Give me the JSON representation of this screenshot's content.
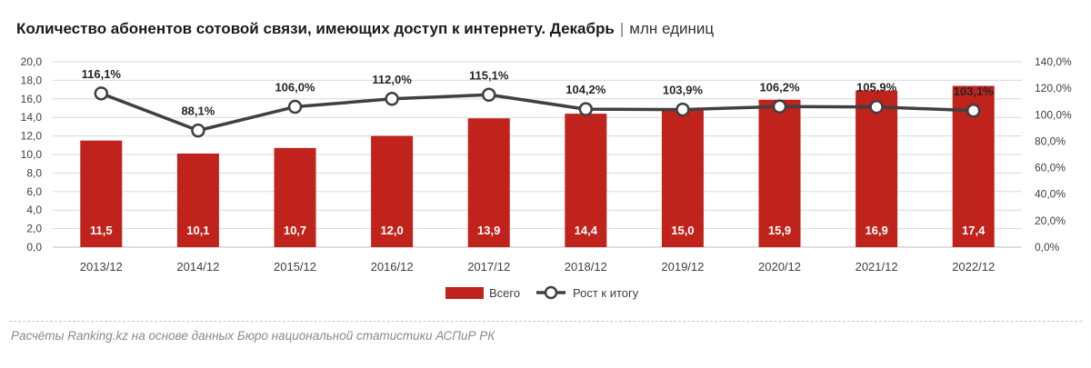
{
  "header": {
    "title": "Количество абонентов сотовой связи, имеющих доступ к интернету. Декабрь",
    "separator": "|",
    "unit": "млн единиц"
  },
  "footer": {
    "source": "Расчёты Ranking.kz на основе данных Бюро национальной статистики АСПиР РК"
  },
  "colors": {
    "bar": "#c0221c",
    "line": "#404040",
    "marker_fill": "#ffffff",
    "grid": "#d9d9d9"
  },
  "chart_data": {
    "type": "bar",
    "categories": [
      "2013/12",
      "2014/12",
      "2015/12",
      "2016/12",
      "2017/12",
      "2018/12",
      "2019/12",
      "2020/12",
      "2021/12",
      "2022/12"
    ],
    "series": [
      {
        "name": "Всего",
        "type": "bar",
        "axis": "left",
        "values": [
          11.5,
          10.1,
          10.7,
          12.0,
          13.9,
          14.4,
          15.0,
          15.9,
          16.9,
          17.4
        ],
        "labels": [
          "11,5",
          "10,1",
          "10,7",
          "12,0",
          "13,9",
          "14,4",
          "15,0",
          "15,9",
          "16,9",
          "17,4"
        ]
      },
      {
        "name": "Рост к итогу",
        "type": "line",
        "axis": "right",
        "values": [
          116.1,
          88.1,
          106.0,
          112.0,
          115.1,
          104.2,
          103.9,
          106.2,
          105.9,
          103.1
        ],
        "labels": [
          "116,1%",
          "88,1%",
          "106,0%",
          "112,0%",
          "115,1%",
          "104,2%",
          "103,9%",
          "106,2%",
          "105,9%",
          "103,1%"
        ]
      }
    ],
    "y_left": {
      "ylim": [
        0,
        20
      ],
      "ticks": [
        0,
        2,
        4,
        6,
        8,
        10,
        12,
        14,
        16,
        18,
        20
      ],
      "tick_labels": [
        "0,0",
        "2,0",
        "4,0",
        "6,0",
        "8,0",
        "10,0",
        "12,0",
        "14,0",
        "16,0",
        "18,0",
        "20,0"
      ]
    },
    "y_right": {
      "ylim": [
        0,
        140
      ],
      "ticks": [
        0,
        20,
        40,
        60,
        80,
        100,
        120,
        140
      ],
      "tick_labels": [
        "0,0%",
        "20,0%",
        "40,0%",
        "60,0%",
        "80,0%",
        "100,0%",
        "120,0%",
        "140,0%"
      ]
    },
    "grid": true,
    "legend": {
      "position": "bottom",
      "entries": [
        "Всего",
        "Рост к итогу"
      ]
    }
  }
}
